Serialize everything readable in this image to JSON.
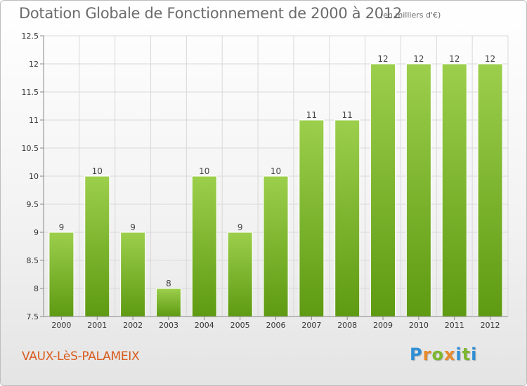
{
  "title": "Dotation Globale de Fonctionnement de 2000 à 2012",
  "subtitle": "(en milliers d'€)",
  "commune": "VAUX-LèS-PALAMEIX",
  "logo": {
    "letters": [
      "P",
      "r",
      "o",
      "x",
      "i",
      "t",
      "i"
    ],
    "colors": [
      "#2e8fd6",
      "#e8892b",
      "#7cb82f",
      "#e8892b",
      "#2e8fd6",
      "#7cb82f",
      "#2e8fd6"
    ]
  },
  "colors": {
    "bar_light": "#9ccf4c",
    "bar_dark": "#5e9a12",
    "grid": "#d9d9d9"
  },
  "chart_data": {
    "type": "bar",
    "categories": [
      "2000",
      "2001",
      "2002",
      "2003",
      "2004",
      "2005",
      "2006",
      "2007",
      "2008",
      "2009",
      "2010",
      "2011",
      "2012"
    ],
    "values": [
      9,
      10,
      9,
      8,
      10,
      9,
      10,
      11,
      11,
      12,
      12,
      12,
      12
    ],
    "value_labels": [
      "9",
      "10",
      "9",
      "8",
      "10",
      "9",
      "10",
      "11",
      "11",
      "12",
      "12",
      "12",
      "12"
    ],
    "yticks": [
      "7.5",
      "8",
      "8.5",
      "9",
      "9.5",
      "10",
      "10.5",
      "11",
      "11.5",
      "12",
      "12.5"
    ],
    "ylim": [
      7.5,
      12.5
    ],
    "grid": true,
    "title": "Dotation Globale de Fonctionnement de 2000 à 2012",
    "xlabel": "",
    "ylabel": ""
  }
}
